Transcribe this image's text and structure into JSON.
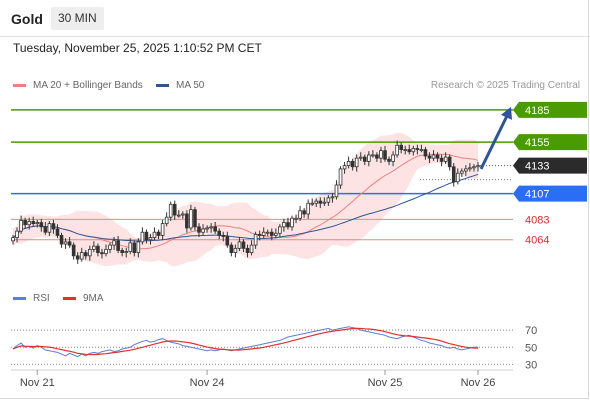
{
  "header": {
    "symbol": "Gold",
    "timeframe": "30 MIN"
  },
  "datetime": "Tuesday, November 25, 2025 1:10:52 PM CET",
  "legend": {
    "ma20": {
      "label": "MA 20 + Bollinger Bands",
      "color": "#f08080"
    },
    "ma50": {
      "label": "MA 50",
      "color": "#2f5597"
    }
  },
  "copyright": "Research © 2025 Trading Central",
  "rsi_legend": {
    "rsi": {
      "label": "RSI",
      "color": "#5b7fd6"
    },
    "ma9": {
      "label": "9MA",
      "color": "#e03030"
    }
  },
  "chart_data": [
    {
      "type": "candlestick",
      "ylim": [
        4033,
        4197
      ],
      "levels": [
        {
          "value": 4185,
          "label": "4185",
          "kind": "target",
          "color": "#4a9b00"
        },
        {
          "value": 4155,
          "label": "4155",
          "kind": "resistance",
          "color": "#4a9b00"
        },
        {
          "value": 4133,
          "label": "4133",
          "kind": "last_price",
          "color": "#2b2b2b"
        },
        {
          "value": 4107,
          "label": "4107",
          "kind": "pivot",
          "color": "#2a6ef5"
        },
        {
          "value": 4083,
          "label": "4083",
          "kind": "support",
          "color": "#e08a8a",
          "text_color": "#d32f2f"
        },
        {
          "value": 4064,
          "label": "4064",
          "kind": "support",
          "color": "#e08a8a",
          "text_color": "#d32f2f"
        }
      ],
      "x_ticks": [
        {
          "label": "Nov 21",
          "index": 6
        },
        {
          "label": "Nov 24",
          "index": 48
        },
        {
          "label": "Nov 25",
          "index": 92
        },
        {
          "label": "Nov 26",
          "index": 115
        }
      ],
      "arrow": {
        "from": 4130,
        "to": 4185,
        "color": "#2f5597"
      },
      "close": [
        4066,
        4072,
        4082,
        4078,
        4081,
        4079,
        4080,
        4076,
        4071,
        4079,
        4074,
        4068,
        4060,
        4062,
        4059,
        4049,
        4046,
        4052,
        4049,
        4055,
        4058,
        4052,
        4051,
        4055,
        4059,
        4063,
        4054,
        4052,
        4053,
        4061,
        4052,
        4062,
        4071,
        4064,
        4066,
        4071,
        4068,
        4079,
        4085,
        4097,
        4087,
        4087,
        4088,
        4075,
        4092,
        4076,
        4071,
        4074,
        4075,
        4076,
        4072,
        4068,
        4067,
        4059,
        4052,
        4056,
        4062,
        4056,
        4052,
        4059,
        4069,
        4068,
        4071,
        4071,
        4068,
        4070,
        4076,
        4080,
        4076,
        4084,
        4084,
        4091,
        4088,
        4098,
        4098,
        4100,
        4098,
        4099,
        4103,
        4104,
        4115,
        4130,
        4133,
        4137,
        4132,
        4140,
        4141,
        4137,
        4143,
        4143,
        4140,
        4147,
        4139,
        4137,
        4143,
        4152,
        4148,
        4148,
        4146,
        4149,
        4148,
        4148,
        4142,
        4140,
        4143,
        4140,
        4137,
        4141,
        4132,
        4118,
        4126,
        4128,
        4130,
        4131,
        4132,
        4133
      ],
      "rsi": [
        48,
        52,
        55,
        50,
        51,
        49,
        52,
        50,
        47,
        46,
        45,
        44,
        42,
        40,
        43,
        41,
        39,
        42,
        40,
        43,
        44,
        43,
        45,
        46,
        47,
        45,
        46,
        48,
        49,
        50,
        53,
        55,
        57,
        58,
        56,
        57,
        59,
        60,
        58,
        56,
        55,
        54,
        52,
        51,
        50,
        49,
        48,
        47,
        46,
        47,
        46,
        47,
        48,
        47,
        46,
        47,
        48,
        49,
        50,
        51,
        52,
        53,
        54,
        55,
        56,
        57,
        58,
        60,
        62,
        63,
        64,
        65,
        66,
        67,
        68,
        69,
        70,
        71,
        72,
        70,
        71,
        72,
        73,
        74,
        73,
        72,
        70,
        69,
        68,
        67,
        66,
        65,
        64,
        62,
        61,
        60,
        62,
        63,
        64,
        62,
        60,
        58,
        57,
        55,
        54,
        53,
        52,
        50,
        49,
        50,
        48,
        47,
        48,
        49,
        50,
        50
      ],
      "rsi_ticks": [
        {
          "label": "70",
          "value": 70
        },
        {
          "label": "50",
          "value": 50
        },
        {
          "label": "30",
          "value": 30
        }
      ]
    }
  ]
}
